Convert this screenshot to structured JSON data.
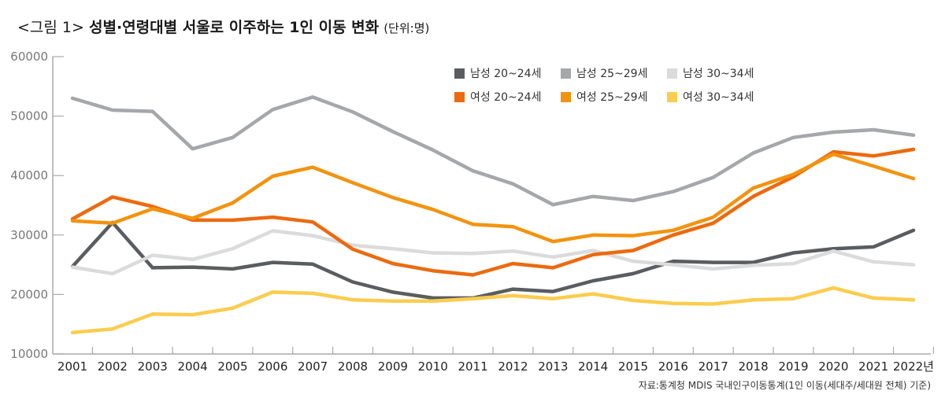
{
  "title": {
    "prefix": "<그림 1>",
    "main": "성별·연령대별 서울로 이주하는 1인 이동 변화",
    "unit": "(단위:명)"
  },
  "source": "자료:통계청 MDIS 국내인구이동통계(1인 이동(세대주/세대원 전체) 기준)",
  "chart_data": {
    "type": "line",
    "title": "성별·연령대별 서울로 이주하는 1인 이동 변화",
    "xlabel": "",
    "ylabel": "명",
    "ylim": [
      10000,
      60000
    ],
    "yticks": [
      "60000",
      "50000",
      "40000",
      "30000",
      "20000",
      "10000"
    ],
    "ytick_values": [
      60000,
      50000,
      40000,
      30000,
      20000,
      10000
    ],
    "x": [
      "2001",
      "2002",
      "2003",
      "2004",
      "2005",
      "2006",
      "2007",
      "2008",
      "2009",
      "2010",
      "2011",
      "2012",
      "2013",
      "2014",
      "2015",
      "2016",
      "2017",
      "2018",
      "2019",
      "2020",
      "2021",
      "2022년"
    ],
    "grid": false,
    "legend_position": "top-right",
    "series": [
      {
        "name": "남성 20~24세",
        "color": "#5a5d60",
        "values": [
          24700,
          32100,
          24500,
          24600,
          24300,
          25400,
          25100,
          22100,
          20400,
          19400,
          19400,
          20900,
          20500,
          22300,
          23500,
          25600,
          25400,
          25400,
          27000,
          27700,
          28000,
          30800
        ]
      },
      {
        "name": "남성 25~29세",
        "color": "#a5a7aa",
        "values": [
          53000,
          51000,
          50800,
          44500,
          46400,
          51100,
          53200,
          50700,
          47400,
          44300,
          40800,
          38600,
          35100,
          36500,
          35800,
          37300,
          39700,
          43800,
          46400,
          47300,
          47700,
          46800
        ]
      },
      {
        "name": "남성 30~34세",
        "color": "#dcdbdb",
        "values": [
          24600,
          23500,
          26600,
          25900,
          27700,
          30700,
          29900,
          28300,
          27700,
          27000,
          26900,
          27300,
          26300,
          27400,
          25600,
          25000,
          24300,
          24900,
          25200,
          27300,
          25500,
          25000
        ]
      },
      {
        "name": "여성 20~24세",
        "color": "#ec6a0e",
        "values": [
          32700,
          36400,
          34800,
          32500,
          32500,
          33000,
          32200,
          27600,
          25200,
          24000,
          23300,
          25200,
          24500,
          26700,
          27400,
          30000,
          32000,
          36500,
          39800,
          44000,
          43300,
          44400
        ]
      },
      {
        "name": "여성 25~29세",
        "color": "#f2930f",
        "values": [
          32400,
          32000,
          34400,
          32800,
          35400,
          39900,
          41400,
          38800,
          36300,
          34300,
          31800,
          31400,
          28900,
          30000,
          29900,
          30800,
          33000,
          37900,
          40200,
          43600,
          41600,
          39500
        ]
      },
      {
        "name": "여성 30~34세",
        "color": "#fbcc4e",
        "values": [
          13600,
          14200,
          16700,
          16600,
          17700,
          20400,
          20200,
          19100,
          18900,
          18900,
          19300,
          19800,
          19300,
          20100,
          19000,
          18500,
          18400,
          19100,
          19300,
          21100,
          19400,
          19100
        ]
      }
    ]
  }
}
